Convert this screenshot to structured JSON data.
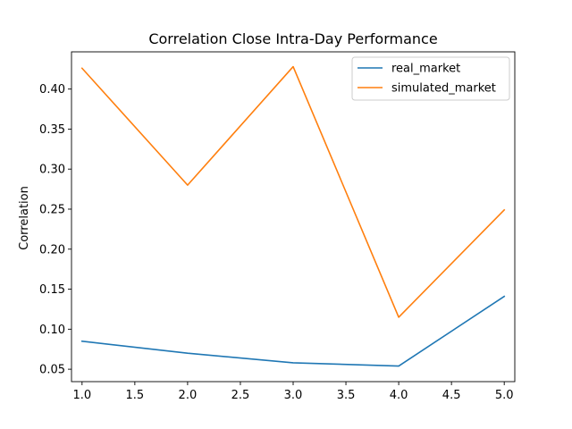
{
  "chart_data": {
    "type": "line",
    "title": "Correlation Close Intra-Day Performance",
    "xlabel": "",
    "ylabel": "Correlation",
    "x": [
      1.0,
      2.0,
      3.0,
      4.0,
      5.0
    ],
    "xlim": [
      0.9,
      5.1
    ],
    "ylim": [
      0.0345,
      0.4465
    ],
    "xticks": [
      1.0,
      1.5,
      2.0,
      2.5,
      3.0,
      3.5,
      4.0,
      4.5,
      5.0
    ],
    "xtick_labels": [
      "1.0",
      "1.5",
      "2.0",
      "2.5",
      "3.0",
      "3.5",
      "4.0",
      "4.5",
      "5.0"
    ],
    "yticks": [
      0.05,
      0.1,
      0.15,
      0.2,
      0.25,
      0.3,
      0.35,
      0.4
    ],
    "ytick_labels": [
      "0.05",
      "0.10",
      "0.15",
      "0.20",
      "0.25",
      "0.30",
      "0.35",
      "0.40"
    ],
    "grid": false,
    "legend": "top-right",
    "series": [
      {
        "name": "real_market",
        "color": "#1f77b4",
        "values": [
          0.085,
          0.07,
          0.058,
          0.054,
          0.141
        ]
      },
      {
        "name": "simulated_market",
        "color": "#ff7f0e",
        "values": [
          0.426,
          0.28,
          0.428,
          0.115,
          0.249
        ]
      }
    ]
  }
}
